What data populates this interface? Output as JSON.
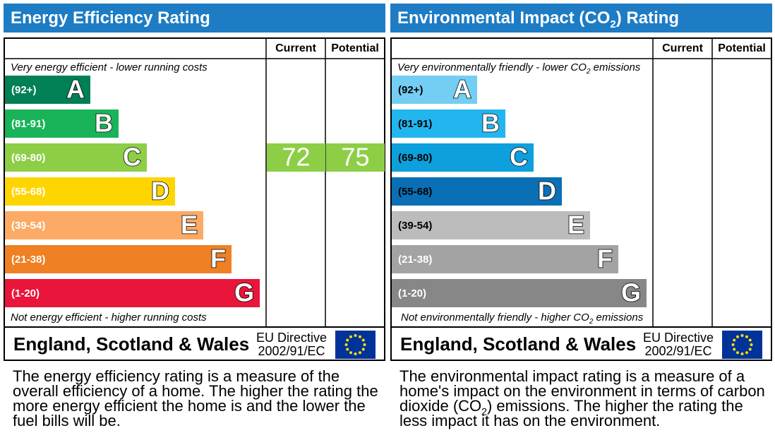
{
  "panels": [
    {
      "title": [
        "Energy Efficiency Rating"
      ],
      "columns": [
        "Current",
        "Potential"
      ],
      "top_note": [
        "Very energy efficient - lower running costs"
      ],
      "bands": [
        {
          "range": "(92+)",
          "letter": "A",
          "color": "#008054",
          "text_color": "#ffffff"
        },
        {
          "range": "(81-91)",
          "letter": "B",
          "color": "#19b459",
          "text_color": "#ffffff"
        },
        {
          "range": "(69-80)",
          "letter": "C",
          "color": "#8dce46",
          "text_color": "#ffffff",
          "current": 72,
          "potential": 75
        },
        {
          "range": "(55-68)",
          "letter": "D",
          "color": "#ffd500",
          "text_color": "#ffffff"
        },
        {
          "range": "(39-54)",
          "letter": "E",
          "color": "#fcaa65",
          "text_color": "#ffffff"
        },
        {
          "range": "(21-38)",
          "letter": "F",
          "color": "#ef8023",
          "text_color": "#ffffff"
        },
        {
          "range": "(1-20)",
          "letter": "G",
          "color": "#e9153b",
          "text_color": "#ffffff"
        }
      ],
      "bottom_note": [
        "Not energy efficient - higher running costs"
      ],
      "footer": {
        "region": "England, Scotland & Wales",
        "directive": [
          "EU Directive",
          "2002/91/EC"
        ]
      },
      "description": [
        "The energy efficiency rating is a measure of the overall efficiency of a home. The higher the rating the more energy efficient the home is and the lower the fuel bills will be."
      ]
    },
    {
      "title": [
        "Environmental Impact (CO",
        "2",
        ") Rating"
      ],
      "columns": [
        "Current",
        "Potential"
      ],
      "top_note": [
        "Very environmentally friendly - lower CO",
        "2",
        " emissions"
      ],
      "bands": [
        {
          "range": "(92+)",
          "letter": "A",
          "color": "#74cdf2",
          "text_color": "#000000"
        },
        {
          "range": "(81-91)",
          "letter": "B",
          "color": "#22b6ef",
          "text_color": "#000000"
        },
        {
          "range": "(69-80)",
          "letter": "C",
          "color": "#0da0dc",
          "text_color": "#000000"
        },
        {
          "range": "(55-68)",
          "letter": "D",
          "color": "#0a6fb5",
          "text_color": "#000000"
        },
        {
          "range": "(39-54)",
          "letter": "E",
          "color": "#bcbcbc",
          "text_color": "#000000"
        },
        {
          "range": "(21-38)",
          "letter": "F",
          "color": "#a3a3a3",
          "text_color": "#ffffff"
        },
        {
          "range": "(1-20)",
          "letter": "G",
          "color": "#878787",
          "text_color": "#ffffff"
        }
      ],
      "bottom_note": [
        "Not environmentally friendly - higher CO",
        "2",
        " emissions"
      ],
      "footer": {
        "region": "England, Scotland & Wales",
        "directive": [
          "EU Directive",
          "2002/91/EC"
        ]
      },
      "description": [
        "The environmental impact rating is a measure of a home's impact on the environment in terms of carbon dioxide (CO",
        "2",
        ") emissions. The higher the rating the less impact it has on the environment."
      ]
    }
  ]
}
